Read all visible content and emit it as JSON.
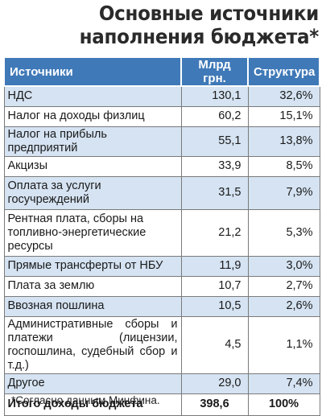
{
  "title": {
    "line1": "Основные источники",
    "line2": "наполнения бюджета*"
  },
  "table": {
    "headers": [
      "Источники",
      "Млрд грн.",
      "Структура"
    ],
    "rows": [
      {
        "source": "НДС",
        "amount": "130,1",
        "share": "32,6%"
      },
      {
        "source": "Налог на доходы физлиц",
        "amount": "60,2",
        "share": "15,1%"
      },
      {
        "source": "Налог на прибыль предприятий",
        "amount": "55,1",
        "share": "13,8%"
      },
      {
        "source": "Акцизы",
        "amount": "33,9",
        "share": "8,5%"
      },
      {
        "source": "Оплата за услуги госучреждений",
        "amount": "31,5",
        "share": "7,9%"
      },
      {
        "source": "Рентная плата, сборы на топливно-энергетические ресурсы",
        "amount": "21,2",
        "share": "5,3%"
      },
      {
        "source": "Прямые трансферты от НБУ",
        "amount": "11,9",
        "share": "3,0%"
      },
      {
        "source": "Плата за землю",
        "amount": "10,7",
        "share": "2,7%"
      },
      {
        "source": "Ввозная пошлина",
        "amount": "10,5",
        "share": "2,6%"
      },
      {
        "source": "Административные сборы и платежи (лицензии, госпошлина, судебный сбор и т.д.)",
        "amount": "4,5",
        "share": "1,1%"
      },
      {
        "source": "Другое",
        "amount": "29,0",
        "share": "7,4%"
      }
    ],
    "total": {
      "source": "Итого доходы бюджета",
      "amount": "398,6",
      "share": "100%"
    }
  },
  "footnote": "*Согласно данным Минфина.",
  "colors": {
    "header_bg": "#3f79b8",
    "row_shade": "#d5e3f2",
    "border": "#7a7a7a"
  }
}
